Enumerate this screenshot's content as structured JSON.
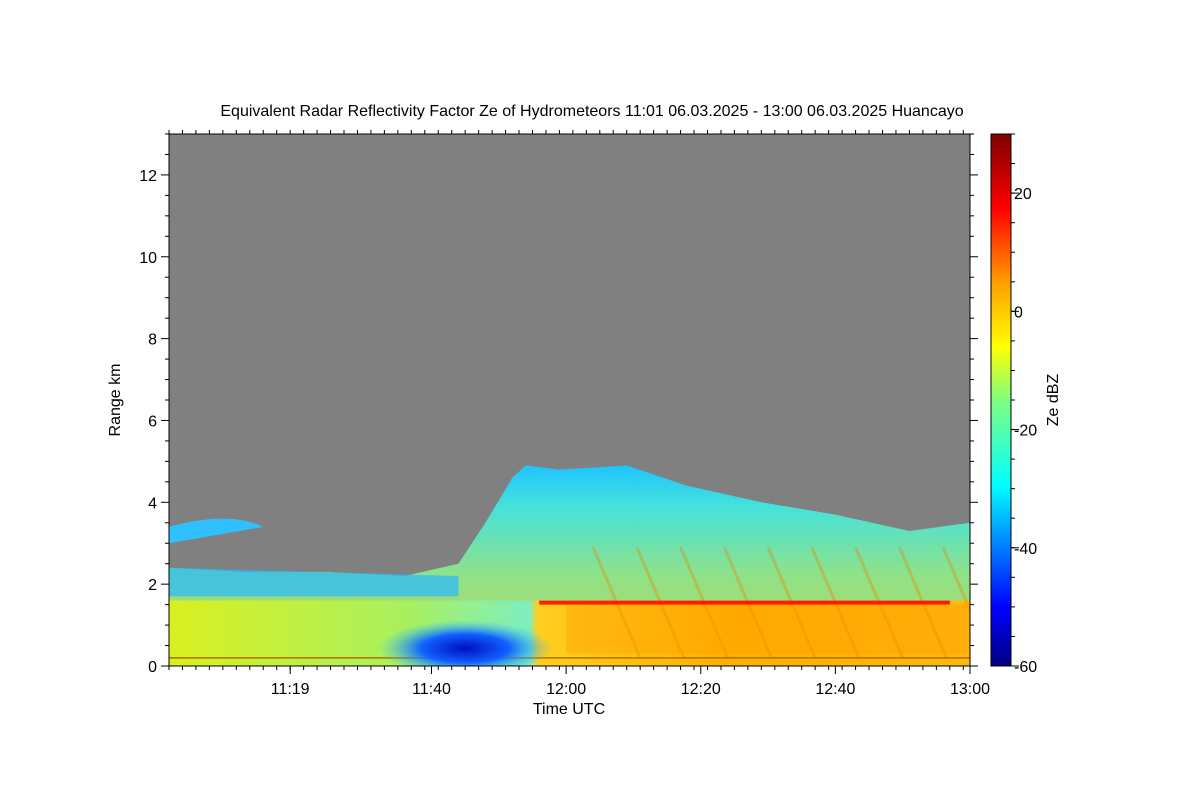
{
  "chart_data": {
    "type": "heatmap",
    "title": "Equivalent Radar Reflectivity Factor Ze of Hydrometeors",
    "time_range_text": "11:01 06.03.2025 - 13:00 06.03.2025",
    "location": "Huancayo",
    "xlabel": "Time UTC",
    "ylabel": "Range km",
    "x_start": "11:01",
    "x_end": "13:00",
    "xlim_minutes_utc": [
      661,
      780
    ],
    "ylim": [
      0,
      13
    ],
    "x_ticks": [
      {
        "label": "11:19",
        "minute": 679
      },
      {
        "label": "11:40",
        "minute": 700
      },
      {
        "label": "12:00",
        "minute": 720
      },
      {
        "label": "12:20",
        "minute": 740
      },
      {
        "label": "12:40",
        "minute": 760
      },
      {
        "label": "13:00",
        "minute": 780
      }
    ],
    "y_ticks": [
      0,
      2,
      4,
      6,
      8,
      10,
      12
    ],
    "colorbar": {
      "label": "Ze dBZ",
      "range": [
        -60,
        30
      ],
      "ticks": [
        -60,
        -40,
        -20,
        0,
        20
      ],
      "colors": [
        "#00007f",
        "#0000ff",
        "#007fff",
        "#00ffff",
        "#7fff7f",
        "#ffff00",
        "#ff7f00",
        "#ff0000",
        "#7f0000"
      ]
    },
    "no_data_color": "#808080",
    "cloud_top_profile": [
      {
        "minute": 661,
        "top_km": 2.4
      },
      {
        "minute": 672,
        "top_km": 2.3
      },
      {
        "minute": 684,
        "top_km": 2.3
      },
      {
        "minute": 696,
        "top_km": 2.2
      },
      {
        "minute": 704,
        "top_km": 2.5
      },
      {
        "minute": 708,
        "top_km": 3.5
      },
      {
        "minute": 712,
        "top_km": 4.6
      },
      {
        "minute": 714,
        "top_km": 4.9
      },
      {
        "minute": 719,
        "top_km": 4.8
      },
      {
        "minute": 729,
        "top_km": 4.9
      },
      {
        "minute": 738,
        "top_km": 4.4
      },
      {
        "minute": 749,
        "top_km": 4.0
      },
      {
        "minute": 760,
        "top_km": 3.7
      },
      {
        "minute": 771,
        "top_km": 3.3
      },
      {
        "minute": 780,
        "top_km": 3.5
      }
    ],
    "features": [
      {
        "name": "melting layer bright band",
        "start_minute": 716,
        "end_minute": 777,
        "height_km": 1.55,
        "ze_dbz": 15
      },
      {
        "name": "near-surface clutter line",
        "start_minute": 661,
        "end_minute": 780,
        "height_km": 0.2,
        "ze_dbz": 10
      },
      {
        "name": "weak echo region",
        "start_minute": 692,
        "end_minute": 718,
        "height_km": 0.5,
        "ze_dbz": -45
      },
      {
        "name": "precipitation core",
        "start_minute": 720,
        "end_minute": 780,
        "height_km": 0.9,
        "ze_dbz": 5
      }
    ]
  }
}
